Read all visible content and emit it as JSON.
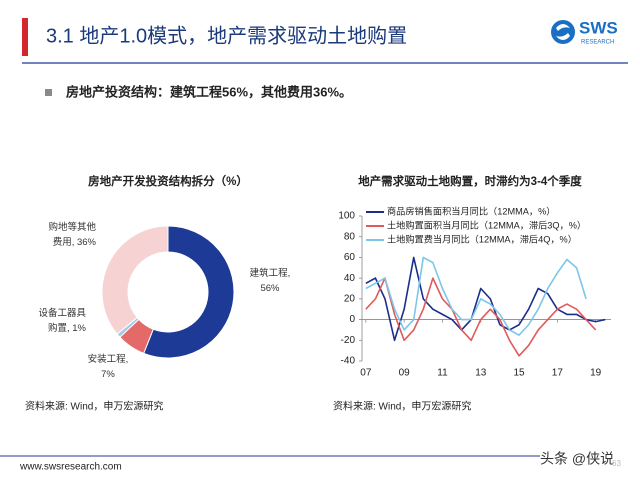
{
  "header": {
    "title": "3.1 地产1.0模式，地产需求驱动土地购置",
    "logo": "SWS",
    "logo_sub": "RESEARCH"
  },
  "bullet": "房地产投资结构：建筑工程56%，其他费用36%。",
  "chart_data": [
    {
      "type": "pie",
      "title": "房地产开发投资结构拆分（%）",
      "values": [
        56,
        7,
        1,
        36
      ],
      "value_labels": [
        "建筑工程, 56%",
        "安装工程, 7%",
        "设备工器具购置, 1%",
        "购地等其他费用, 36%"
      ],
      "colors": [
        "#1c3a96",
        "#e46a6a",
        "#9fcbe6",
        "#f6d2d3"
      ]
    },
    {
      "type": "line",
      "title": "地产需求驱动土地购置，时滞约为3-4个季度",
      "x": [
        7,
        7.5,
        8,
        8.5,
        9,
        9.5,
        10,
        10.5,
        11,
        11.5,
        12,
        12.5,
        13,
        13.5,
        14,
        14.5,
        15,
        15.5,
        16,
        16.5,
        17,
        17.5,
        18,
        18.5,
        19,
        19.5
      ],
      "series": [
        {
          "name": "商品房销售面积当月同比（12MMA，%）",
          "color": "#1c2e8c",
          "values": [
            35,
            40,
            20,
            -20,
            10,
            60,
            20,
            10,
            5,
            0,
            -10,
            0,
            30,
            20,
            -5,
            -10,
            -5,
            10,
            30,
            25,
            10,
            5,
            5,
            0,
            -2,
            0
          ]
        },
        {
          "name": "土地购置面积当月同比（12MMA，滞后3Q，%）",
          "color": "#e05a5a",
          "values": [
            10,
            20,
            40,
            5,
            -20,
            -10,
            10,
            40,
            20,
            10,
            -10,
            -20,
            0,
            10,
            0,
            -20,
            -35,
            -25,
            -10,
            0,
            10,
            15,
            10,
            0,
            -10,
            null
          ]
        },
        {
          "name": "土地购置费当月同比（12MMA，滞后4Q，%）",
          "color": "#7cc6e8",
          "values": [
            30,
            35,
            40,
            10,
            -10,
            0,
            60,
            55,
            30,
            10,
            0,
            0,
            20,
            15,
            5,
            -10,
            -15,
            -5,
            10,
            30,
            45,
            58,
            50,
            20,
            null,
            null
          ]
        }
      ],
      "xlim": [
        6.8,
        19.8
      ],
      "xticks": [
        {
          "value": 7,
          "label": "07"
        },
        {
          "value": 9,
          "label": "09"
        },
        11,
        13,
        15,
        17,
        19
      ],
      "ylim": [
        -40,
        100
      ],
      "yticks": [
        100,
        80,
        60,
        40,
        20,
        0,
        -20,
        -40
      ],
      "grid": false
    }
  ],
  "sources": [
    "资料来源: Wind，申万宏源研究",
    "资料来源: Wind，申万宏源研究"
  ],
  "footer": {
    "url": "www.swsresearch.com",
    "watermark": "头条 @侠说",
    "page": "63"
  }
}
